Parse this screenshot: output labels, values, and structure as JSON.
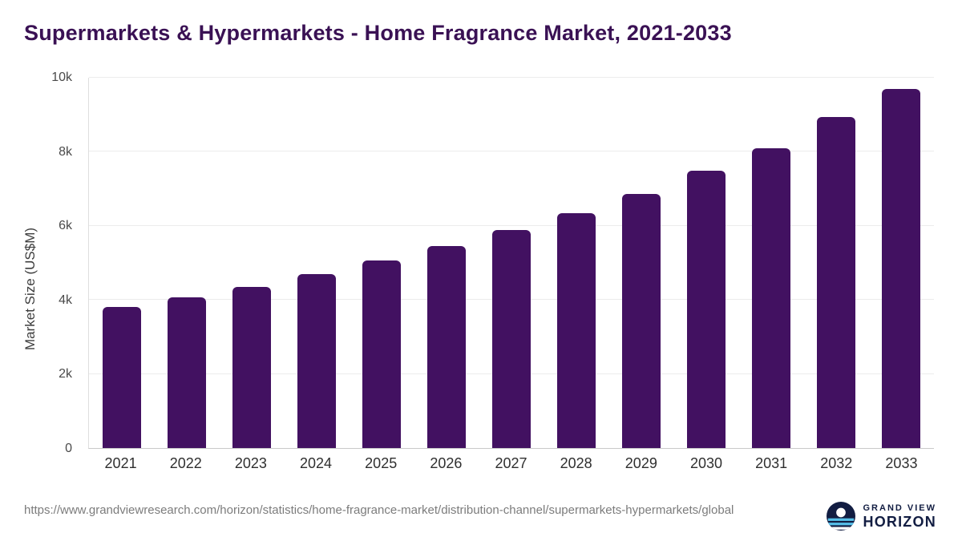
{
  "title": "Supermarkets & Hypermarkets - Home Fragrance Market, 2021-2033",
  "colors": {
    "bar": "#421161",
    "title": "#3a1154",
    "grid": "#ececec",
    "logo_navy": "#121d42",
    "logo_blue": "#56bfe8"
  },
  "chart_data": {
    "type": "bar",
    "title": "Supermarkets & Hypermarkets - Home Fragrance Market, 2021-2033",
    "categories": [
      "2021",
      "2022",
      "2023",
      "2024",
      "2025",
      "2026",
      "2027",
      "2028",
      "2029",
      "2030",
      "2031",
      "2032",
      "2033"
    ],
    "values": [
      3800,
      4060,
      4360,
      4700,
      5060,
      5450,
      5890,
      6340,
      6860,
      7490,
      8090,
      8950,
      9690
    ],
    "xlabel": "",
    "ylabel": "Market Size (US$M)",
    "ylim": [
      0,
      10000
    ],
    "yticks": [
      {
        "value": 0,
        "label": "0"
      },
      {
        "value": 2000,
        "label": "2k"
      },
      {
        "value": 4000,
        "label": "4k"
      },
      {
        "value": 6000,
        "label": "6k"
      },
      {
        "value": 8000,
        "label": "8k"
      },
      {
        "value": 10000,
        "label": "10k"
      }
    ],
    "grid": true,
    "legend": false
  },
  "footer": {
    "source_url": "https://www.grandviewresearch.com/horizon/statistics/home-fragrance-market/distribution-channel/supermarkets-hypermarkets/global",
    "logo": {
      "top": "GRAND VIEW",
      "bottom": "HORIZON"
    }
  }
}
